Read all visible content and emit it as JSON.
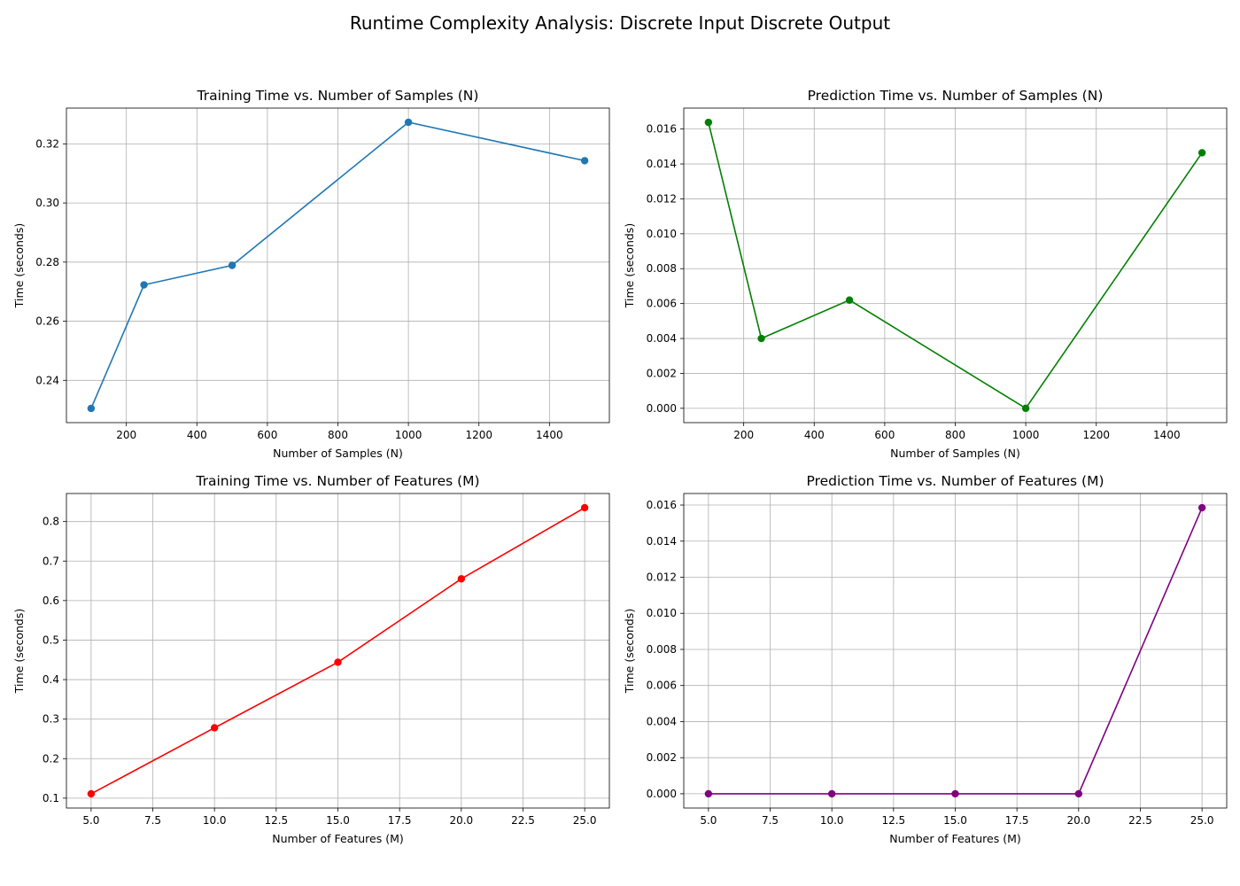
{
  "figure": {
    "title": "Runtime Complexity Analysis: Discrete Input Discrete Output"
  },
  "chart_data": [
    {
      "type": "line",
      "title": "Training Time vs. Number of Samples (N)",
      "xlabel": "Number of Samples (N)",
      "ylabel": "Time (seconds)",
      "x": [
        100,
        250,
        500,
        1000,
        1500
      ],
      "series": [
        {
          "values": [
            0.2305,
            0.2723,
            0.2789,
            0.3273,
            0.3143
          ],
          "color": "#1f77b4"
        }
      ],
      "xlim": [
        30,
        1570
      ],
      "ylim": [
        0.2257,
        0.3321
      ],
      "xticks": [
        200,
        400,
        600,
        800,
        1000,
        1200,
        1400
      ],
      "xtick_labels": [
        "200",
        "400",
        "600",
        "800",
        "1000",
        "1200",
        "1400"
      ],
      "yticks": [
        0.24,
        0.26,
        0.28,
        0.3,
        0.32
      ],
      "ytick_labels": [
        "0.24",
        "0.26",
        "0.28",
        "0.30",
        "0.32"
      ],
      "grid": true,
      "marker": "circle"
    },
    {
      "type": "line",
      "title": "Prediction Time vs. Number of Samples (N)",
      "xlabel": "Number of Samples (N)",
      "ylabel": "Time (seconds)",
      "x": [
        100,
        250,
        500,
        1000,
        1500
      ],
      "series": [
        {
          "values": [
            0.01638,
            0.004,
            0.0062,
            0.0,
            0.01464
          ],
          "color": "#008000"
        }
      ],
      "xlim": [
        30,
        1570
      ],
      "ylim": [
        -0.00082,
        0.0172
      ],
      "xticks": [
        200,
        400,
        600,
        800,
        1000,
        1200,
        1400
      ],
      "xtick_labels": [
        "200",
        "400",
        "600",
        "800",
        "1000",
        "1200",
        "1400"
      ],
      "yticks": [
        0.0,
        0.002,
        0.004,
        0.006,
        0.008,
        0.01,
        0.012,
        0.014,
        0.016
      ],
      "ytick_labels": [
        "0.000",
        "0.002",
        "0.004",
        "0.006",
        "0.008",
        "0.010",
        "0.012",
        "0.014",
        "0.016"
      ],
      "grid": true,
      "marker": "circle"
    },
    {
      "type": "line",
      "title": "Training Time vs. Number of Features (M)",
      "xlabel": "Number of Features (M)",
      "ylabel": "Time (seconds)",
      "x": [
        5,
        10,
        15,
        20,
        25
      ],
      "series": [
        {
          "values": [
            0.111,
            0.278,
            0.444,
            0.655,
            0.835
          ],
          "color": "#ff0000"
        }
      ],
      "xlim": [
        4,
        26
      ],
      "ylim": [
        0.075,
        0.871
      ],
      "xticks": [
        5.0,
        7.5,
        10.0,
        12.5,
        15.0,
        17.5,
        20.0,
        22.5,
        25.0
      ],
      "xtick_labels": [
        "5.0",
        "7.5",
        "10.0",
        "12.5",
        "15.0",
        "17.5",
        "20.0",
        "22.5",
        "25.0"
      ],
      "yticks": [
        0.1,
        0.2,
        0.3,
        0.4,
        0.5,
        0.6,
        0.7,
        0.8
      ],
      "ytick_labels": [
        "0.1",
        "0.2",
        "0.3",
        "0.4",
        "0.5",
        "0.6",
        "0.7",
        "0.8"
      ],
      "grid": true,
      "marker": "circle"
    },
    {
      "type": "line",
      "title": "Prediction Time vs. Number of Features (M)",
      "xlabel": "Number of Features (M)",
      "ylabel": "Time (seconds)",
      "x": [
        5,
        10,
        15,
        20,
        25
      ],
      "series": [
        {
          "values": [
            0.0,
            0.0,
            0.0,
            0.0,
            0.01585
          ],
          "color": "#800080"
        }
      ],
      "xlim": [
        4,
        26
      ],
      "ylim": [
        -0.00079,
        0.01664
      ],
      "xticks": [
        5.0,
        7.5,
        10.0,
        12.5,
        15.0,
        17.5,
        20.0,
        22.5,
        25.0
      ],
      "xtick_labels": [
        "5.0",
        "7.5",
        "10.0",
        "12.5",
        "15.0",
        "17.5",
        "20.0",
        "22.5",
        "25.0"
      ],
      "yticks": [
        0.0,
        0.002,
        0.004,
        0.006,
        0.008,
        0.01,
        0.012,
        0.014,
        0.016
      ],
      "ytick_labels": [
        "0.000",
        "0.002",
        "0.004",
        "0.006",
        "0.008",
        "0.010",
        "0.012",
        "0.014",
        "0.016"
      ],
      "grid": true,
      "marker": "circle"
    }
  ]
}
